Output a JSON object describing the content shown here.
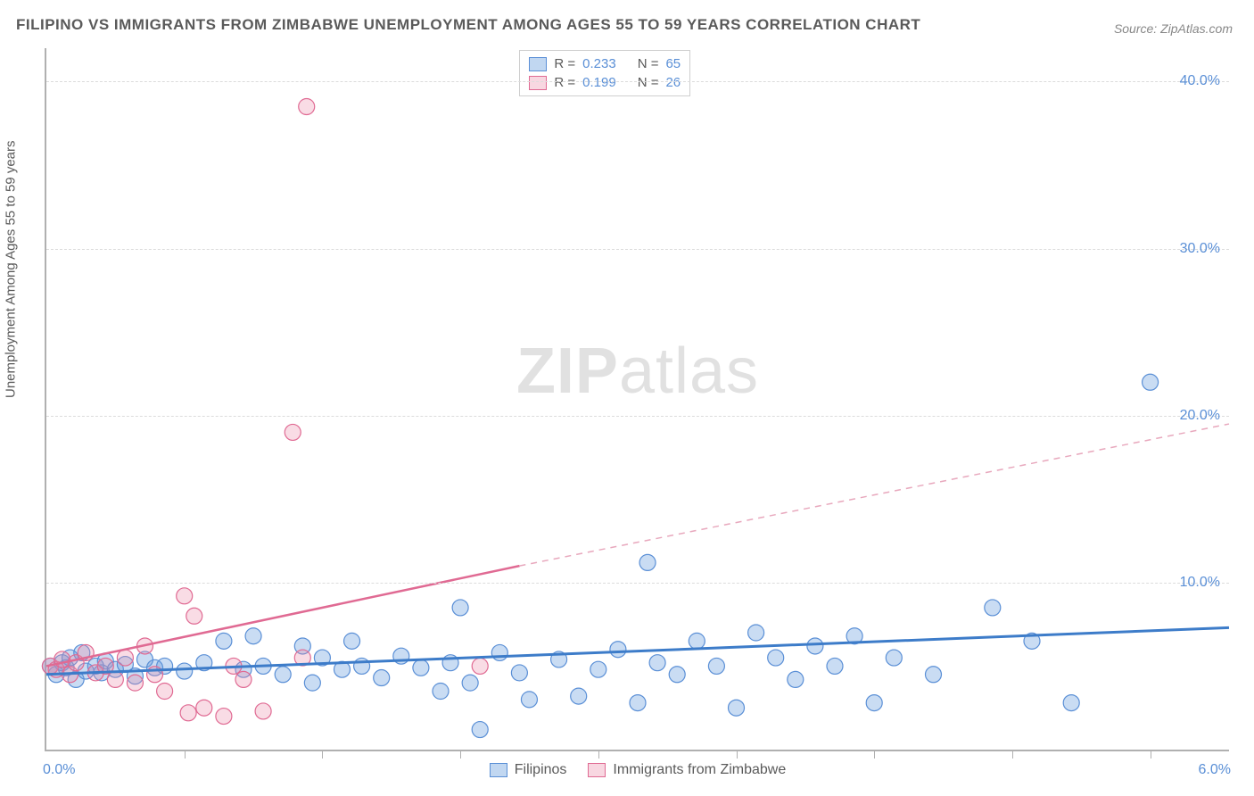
{
  "title": "FILIPINO VS IMMIGRANTS FROM ZIMBABWE UNEMPLOYMENT AMONG AGES 55 TO 59 YEARS CORRELATION CHART",
  "source": "Source: ZipAtlas.com",
  "watermark": {
    "zip": "ZIP",
    "atlas": "atlas"
  },
  "chart": {
    "type": "scatter",
    "xlim": [
      0,
      6.0
    ],
    "ylim": [
      0,
      42
    ],
    "y_ticks": [
      10,
      20,
      30,
      40
    ],
    "y_tick_labels": [
      "10.0%",
      "20.0%",
      "30.0%",
      "40.0%"
    ],
    "x_origin_label": "0.0%",
    "x_end_label": "6.0%",
    "x_tick_positions": [
      0.7,
      1.4,
      2.1,
      2.8,
      3.5,
      4.2,
      4.9,
      5.6
    ],
    "y_axis_label": "Unemployment Among Ages 55 to 59 years",
    "background_color": "#ffffff",
    "grid_color": "#dcdcdc",
    "marker_radius": 9,
    "series": [
      {
        "name": "Filipinos",
        "color_fill": "rgba(100,155,220,0.35)",
        "color_stroke": "#5a8fd6",
        "trend_color": "#3d7cc9",
        "R": "0.233",
        "N": "65",
        "trend": {
          "x1": 0,
          "y1": 4.5,
          "x2": 6.0,
          "y2": 7.3
        },
        "points": [
          [
            0.02,
            5.0
          ],
          [
            0.05,
            4.5
          ],
          [
            0.08,
            5.2
          ],
          [
            0.1,
            4.9
          ],
          [
            0.12,
            5.5
          ],
          [
            0.15,
            4.2
          ],
          [
            0.18,
            5.8
          ],
          [
            0.2,
            4.7
          ],
          [
            0.25,
            5.0
          ],
          [
            0.28,
            4.6
          ],
          [
            0.3,
            5.3
          ],
          [
            0.35,
            4.8
          ],
          [
            0.4,
            5.1
          ],
          [
            0.45,
            4.4
          ],
          [
            0.5,
            5.4
          ],
          [
            0.55,
            4.9
          ],
          [
            0.6,
            5.0
          ],
          [
            0.7,
            4.7
          ],
          [
            0.8,
            5.2
          ],
          [
            0.9,
            6.5
          ],
          [
            1.0,
            4.8
          ],
          [
            1.05,
            6.8
          ],
          [
            1.1,
            5.0
          ],
          [
            1.2,
            4.5
          ],
          [
            1.3,
            6.2
          ],
          [
            1.35,
            4.0
          ],
          [
            1.4,
            5.5
          ],
          [
            1.5,
            4.8
          ],
          [
            1.55,
            6.5
          ],
          [
            1.6,
            5.0
          ],
          [
            1.7,
            4.3
          ],
          [
            1.8,
            5.6
          ],
          [
            1.9,
            4.9
          ],
          [
            2.0,
            3.5
          ],
          [
            2.05,
            5.2
          ],
          [
            2.1,
            8.5
          ],
          [
            2.15,
            4.0
          ],
          [
            2.2,
            1.2
          ],
          [
            2.3,
            5.8
          ],
          [
            2.4,
            4.6
          ],
          [
            2.45,
            3.0
          ],
          [
            2.6,
            5.4
          ],
          [
            2.7,
            3.2
          ],
          [
            2.8,
            4.8
          ],
          [
            2.9,
            6.0
          ],
          [
            3.0,
            2.8
          ],
          [
            3.05,
            11.2
          ],
          [
            3.1,
            5.2
          ],
          [
            3.2,
            4.5
          ],
          [
            3.3,
            6.5
          ],
          [
            3.4,
            5.0
          ],
          [
            3.5,
            2.5
          ],
          [
            3.6,
            7.0
          ],
          [
            3.7,
            5.5
          ],
          [
            3.8,
            4.2
          ],
          [
            3.9,
            6.2
          ],
          [
            4.0,
            5.0
          ],
          [
            4.1,
            6.8
          ],
          [
            4.2,
            2.8
          ],
          [
            4.3,
            5.5
          ],
          [
            4.5,
            4.5
          ],
          [
            4.8,
            8.5
          ],
          [
            5.0,
            6.5
          ],
          [
            5.2,
            2.8
          ],
          [
            5.6,
            22.0
          ]
        ]
      },
      {
        "name": "Immigrants from Zimbabwe",
        "color_fill": "rgba(235,140,170,0.30)",
        "color_stroke": "#e06a93",
        "trend_color": "#e06a93",
        "R": "0.199",
        "N": "26",
        "trend_solid": {
          "x1": 0,
          "y1": 5.0,
          "x2": 2.4,
          "y2": 11.0
        },
        "trend_dash": {
          "x1": 2.4,
          "y1": 11.0,
          "x2": 6.0,
          "y2": 19.5
        },
        "points": [
          [
            0.02,
            5.0
          ],
          [
            0.05,
            4.8
          ],
          [
            0.08,
            5.4
          ],
          [
            0.12,
            4.5
          ],
          [
            0.15,
            5.2
          ],
          [
            0.2,
            5.8
          ],
          [
            0.25,
            4.6
          ],
          [
            0.3,
            5.0
          ],
          [
            0.35,
            4.2
          ],
          [
            0.4,
            5.5
          ],
          [
            0.45,
            4.0
          ],
          [
            0.5,
            6.2
          ],
          [
            0.55,
            4.5
          ],
          [
            0.6,
            3.5
          ],
          [
            0.7,
            9.2
          ],
          [
            0.72,
            2.2
          ],
          [
            0.75,
            8.0
          ],
          [
            0.8,
            2.5
          ],
          [
            0.9,
            2.0
          ],
          [
            0.95,
            5.0
          ],
          [
            1.0,
            4.2
          ],
          [
            1.1,
            2.3
          ],
          [
            1.25,
            19.0
          ],
          [
            1.3,
            5.5
          ],
          [
            1.32,
            38.5
          ],
          [
            2.2,
            5.0
          ]
        ]
      }
    ],
    "legend_top": [
      {
        "swatch": "blue",
        "r_label": "R =",
        "r_val": "0.233",
        "n_label": "N =",
        "n_val": "65"
      },
      {
        "swatch": "pink",
        "r_label": "R =",
        "r_val": "0.199",
        "n_label": "N =",
        "n_val": "26"
      }
    ],
    "legend_bottom": [
      {
        "swatch": "blue",
        "label": "Filipinos"
      },
      {
        "swatch": "pink",
        "label": "Immigrants from Zimbabwe"
      }
    ]
  }
}
